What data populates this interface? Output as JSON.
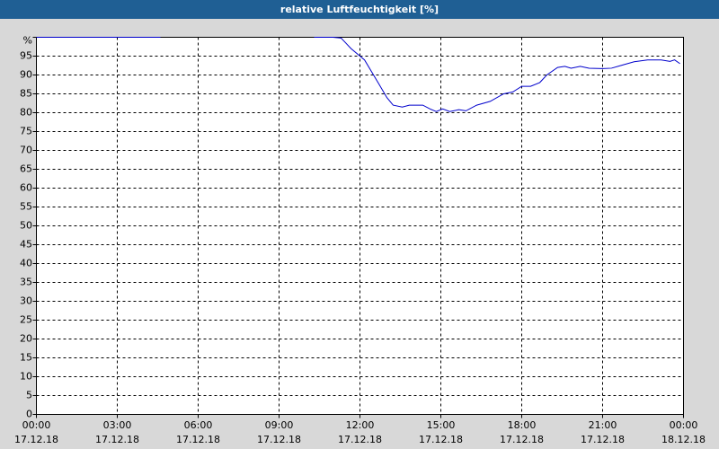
{
  "chart_data": {
    "type": "line",
    "title": "relative Luftfeuchtigkeit [%]",
    "x": [
      0,
      1,
      2,
      3,
      4,
      4.6,
      7,
      10.3,
      11,
      11.3,
      11.67,
      12.17,
      12.67,
      13,
      13.23,
      13.57,
      13.83,
      14.33,
      14.6,
      14.83,
      15.07,
      15.33,
      15.67,
      15.93,
      16.33,
      16.83,
      17.33,
      17.67,
      18,
      18.33,
      18.67,
      18.93,
      19.33,
      19.6,
      19.83,
      20.17,
      20.5,
      21,
      21.33,
      21.67,
      22.17,
      22.67,
      23.17,
      23.5,
      23.67,
      23.87
    ],
    "values": [
      100,
      100,
      100,
      100,
      100,
      100,
      null,
      100,
      100,
      99.8,
      97,
      94,
      88,
      84,
      82,
      81.5,
      82,
      82,
      81,
      80.3,
      81,
      80.3,
      80.8,
      80.5,
      82,
      83,
      85,
      85.5,
      87,
      87,
      88,
      90,
      92,
      92.3,
      91.8,
      92.3,
      91.8,
      91.7,
      91.8,
      92.5,
      93.5,
      94,
      94,
      93.6,
      94,
      93
    ],
    "color": "#0000cc",
    "xlim": [
      0,
      24
    ],
    "xticks": [
      {
        "value": 0,
        "label": "00:00"
      },
      {
        "value": 3,
        "label": "03:00"
      },
      {
        "value": 6,
        "label": "06:00"
      },
      {
        "value": 9,
        "label": "09:00"
      },
      {
        "value": 12,
        "label": "12:00"
      },
      {
        "value": 15,
        "label": "15:00"
      },
      {
        "value": 18,
        "label": "18:00"
      },
      {
        "value": 21,
        "label": "21:00"
      },
      {
        "value": 24,
        "label": "00:00"
      }
    ],
    "xtick_dates": [
      "17.12.18",
      "17.12.18",
      "17.12.18",
      "17.12.18",
      "17.12.18",
      "17.12.18",
      "17.12.18",
      "17.12.18",
      "18.12.18"
    ],
    "ylim": [
      0,
      100
    ],
    "yticks": [
      0,
      5,
      10,
      15,
      20,
      25,
      30,
      35,
      40,
      45,
      50,
      55,
      60,
      65,
      70,
      75,
      80,
      85,
      90,
      95,
      {
        "value": 100,
        "label": "%"
      }
    ],
    "grid": true
  }
}
